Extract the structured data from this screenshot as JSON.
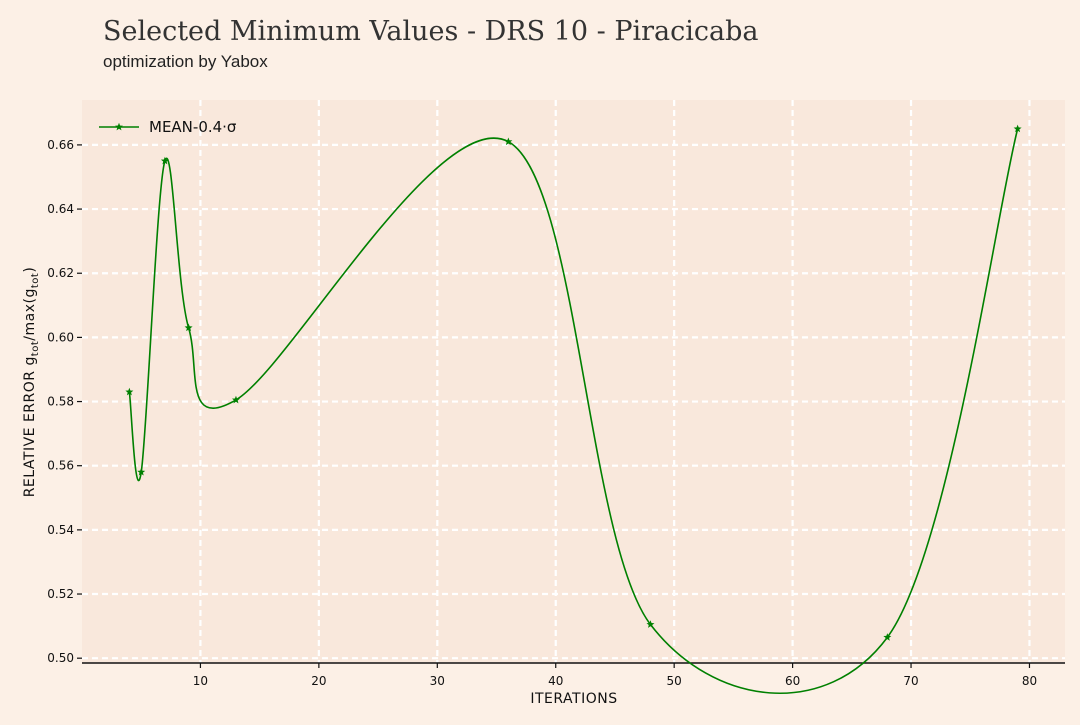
{
  "chart_data": {
    "type": "line",
    "title": "Selected Minimum Values - DRS 10 - Piracicaba",
    "subtitle": "optimization by Yabox",
    "xlabel": "ITERATIONS",
    "ylabel": "RELATIVE ERROR g_tot/max(g_tot)",
    "ylabel_parts": {
      "pre": "RELATIVE ERROR g",
      "sub1": "tot",
      "mid": "/max(g",
      "sub2": "tot",
      "post": ")"
    },
    "xlim": [
      0,
      83
    ],
    "ylim": [
      0.4985,
      0.674
    ],
    "xticks": [
      10,
      20,
      30,
      40,
      50,
      60,
      70,
      80
    ],
    "yticks": [
      0.5,
      0.52,
      0.54,
      0.56,
      0.58,
      0.6,
      0.62,
      0.64,
      0.66
    ],
    "grid": true,
    "legend_position": "top-left",
    "series": [
      {
        "name": "MEAN-0.4·σ",
        "color": "#008000",
        "marker": "star",
        "x": [
          4,
          5,
          7,
          9,
          13,
          36,
          48,
          68,
          79
        ],
        "y": [
          0.583,
          0.558,
          0.655,
          0.603,
          0.5805,
          0.661,
          0.5105,
          0.5065,
          0.665
        ]
      }
    ],
    "colors": {
      "background": "#fcf0e6",
      "plot_area": "#f9e8dc",
      "grid": "#ffffff",
      "line": "#008000"
    }
  }
}
